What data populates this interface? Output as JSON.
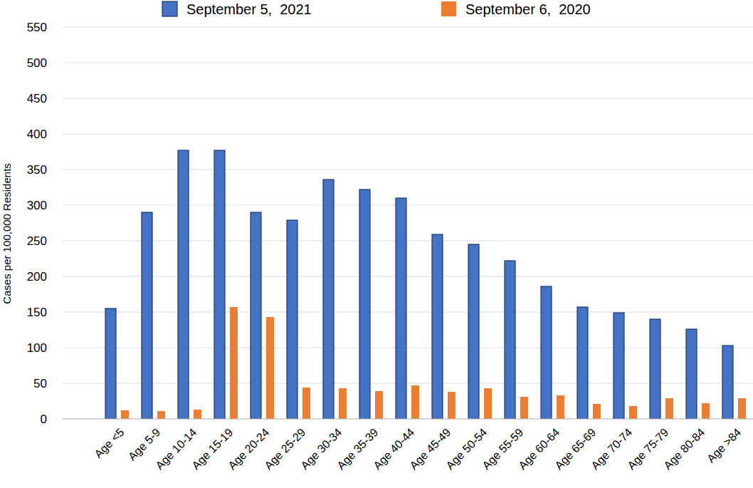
{
  "chart_data": {
    "type": "bar",
    "y_label": "Cases per 100,000 Residents",
    "categories": [
      "Age <5",
      "Age 5-9",
      "Age 10-14",
      "Age 15-19",
      "Age 20-24",
      "Age 25-29",
      "Age 30-34",
      "Age 35-39",
      "Age 40-44",
      "Age 45-49",
      "Age 50-54",
      "Age 55-59",
      "Age 60-64",
      "Age 65-69",
      "Age 70-74",
      "Age 75-79",
      "Age 80-84",
      "Age >84"
    ],
    "series": [
      {
        "name": "September 5,  2021",
        "color": "#4472c4",
        "values": [
          155,
          290,
          377,
          377,
          290,
          279,
          336,
          322,
          310,
          259,
          245,
          222,
          186,
          157,
          149,
          140,
          126,
          103
        ]
      },
      {
        "name": "September 6,  2020",
        "color": "#ed7d31",
        "values": [
          12,
          11,
          13,
          157,
          143,
          44,
          43,
          39,
          47,
          38,
          43,
          31,
          33,
          21,
          18,
          29,
          22,
          29
        ]
      }
    ],
    "ylim": [
      0,
      550
    ],
    "yticks": [
      0,
      50,
      100,
      150,
      200,
      250,
      300,
      350,
      400,
      450,
      500,
      550
    ],
    "grid": true,
    "legend": "top"
  }
}
